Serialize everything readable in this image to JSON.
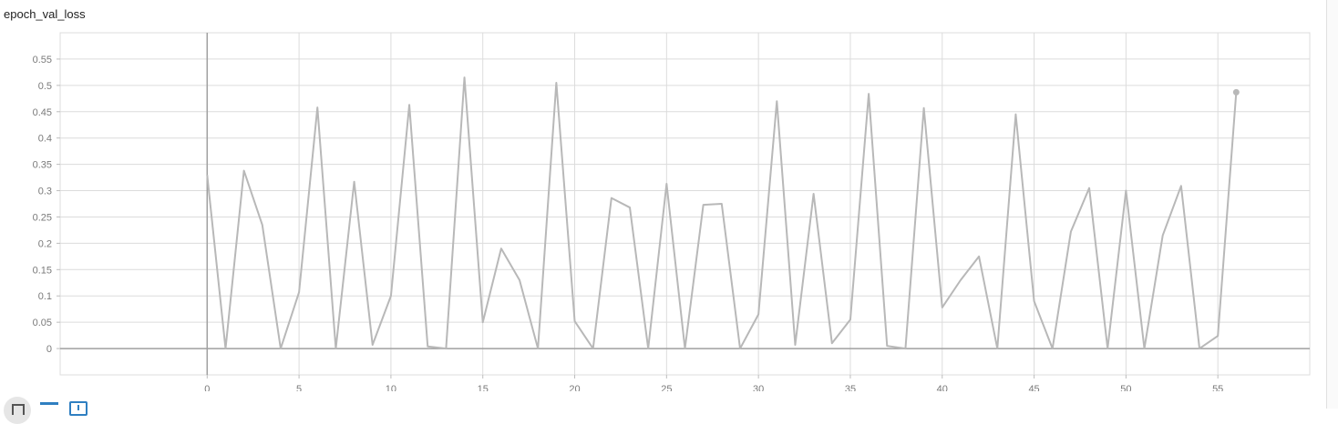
{
  "card": {
    "title": "epoch_val_loss"
  },
  "toolbar": {
    "icons": [
      "fit-domain-icon",
      "toggle-log-scale-icon",
      "download-icon"
    ]
  },
  "chart_data": {
    "type": "line",
    "title": "epoch_val_loss",
    "xlabel": "",
    "ylabel": "",
    "xlim": [
      -8,
      60
    ],
    "ylim": [
      -0.05,
      0.6
    ],
    "grid": true,
    "x_ticks": [
      0,
      5,
      10,
      15,
      20,
      25,
      30,
      35,
      40,
      45,
      50,
      55
    ],
    "y_ticks": [
      0,
      0.05,
      0.1,
      0.15,
      0.2,
      0.25,
      0.3,
      0.35,
      0.4,
      0.45,
      0.5,
      0.55
    ],
    "x_tick_labels": [
      "0",
      "5",
      "10",
      "15",
      "20",
      "25",
      "30",
      "35",
      "40",
      "45",
      "50",
      "55"
    ],
    "y_tick_labels": [
      "0",
      "0.05",
      "0.1",
      "0.15",
      "0.2",
      "0.25",
      "0.3",
      "0.35",
      "0.4",
      "0.45",
      "0.5",
      "0.55"
    ],
    "series": [
      {
        "color": "#b8b8b8",
        "x": [
          0,
          1,
          2,
          3,
          4,
          5,
          6,
          7,
          8,
          9,
          10,
          11,
          12,
          13,
          14,
          15,
          16,
          17,
          18,
          19,
          20,
          21,
          22,
          23,
          24,
          25,
          26,
          27,
          28,
          29,
          30,
          31,
          32,
          33,
          34,
          35,
          36,
          37,
          38,
          39,
          40,
          41,
          42,
          43,
          44,
          45,
          46,
          47,
          48,
          49,
          50,
          51,
          52,
          53,
          54,
          55,
          56
        ],
        "values": [
          0.33,
          0.0,
          0.338,
          0.235,
          0.0,
          0.107,
          0.458,
          0.0,
          0.317,
          0.007,
          0.1,
          0.463,
          0.004,
          0.0,
          0.515,
          0.05,
          0.19,
          0.13,
          0.0,
          0.505,
          0.052,
          0.0,
          0.286,
          0.268,
          0.0,
          0.313,
          0.0,
          0.273,
          0.275,
          0.0,
          0.065,
          0.47,
          0.007,
          0.294,
          0.01,
          0.055,
          0.484,
          0.005,
          0.0,
          0.457,
          0.078,
          0.13,
          0.175,
          0.0,
          0.445,
          0.09,
          0.0,
          0.222,
          0.305,
          0.0,
          0.3,
          0.0,
          0.215,
          0.309,
          0.0,
          0.024,
          0.487
        ]
      }
    ]
  }
}
